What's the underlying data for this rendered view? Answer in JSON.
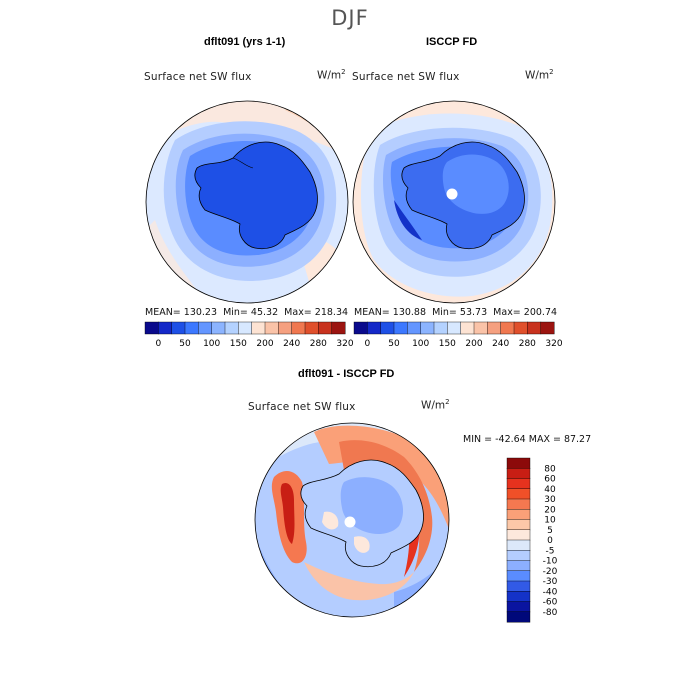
{
  "season": "DJF",
  "panels": [
    {
      "title": "dflt091 (yrs 1-1)",
      "variable": "Surface net SW flux",
      "units": "W/m",
      "units_exp": "2",
      "stats": {
        "mean": "MEAN=  130.23",
        "min": "Min=   45.32",
        "max": "Max=  218.34"
      }
    },
    {
      "title": "ISCCP FD",
      "variable": "Surface net SW flux",
      "units": "W/m",
      "units_exp": "2",
      "stats": {
        "mean": "MEAN=  130.88",
        "min": "Min=   53.73",
        "max": "Max=  200.74"
      }
    }
  ],
  "abs_colorbar": {
    "labels": [
      "0",
      "50",
      "100",
      "150",
      "200",
      "240",
      "280",
      "320"
    ],
    "colors": [
      "#0a0a8c",
      "#1428c8",
      "#1e50e6",
      "#3c78ff",
      "#6496ff",
      "#8cb4ff",
      "#b4d2ff",
      "#d7e8ff",
      "#fde3d3",
      "#fac3a8",
      "#f5a080",
      "#f07850",
      "#e0502c",
      "#c8321e",
      "#9b1410"
    ]
  },
  "diff": {
    "title": "dflt091 - ISCCP FD",
    "variable": "Surface net SW flux",
    "units": "W/m",
    "units_exp": "2",
    "minmax": "MIN = -42.64  MAX =   87.27",
    "levels": [
      "80",
      "60",
      "40",
      "30",
      "20",
      "10",
      "5",
      "0",
      "-5",
      "-10",
      "-20",
      "-30",
      "-40",
      "-60",
      "-80"
    ],
    "colors": [
      "#8c0a0a",
      "#c81e14",
      "#e6321e",
      "#f05028",
      "#f57850",
      "#faa078",
      "#fcc8a8",
      "#fde8dc",
      "#dce8fa",
      "#b4cdff",
      "#8cafff",
      "#5a8cff",
      "#325ae6",
      "#1432c8",
      "#0a14a0",
      "#00087a"
    ]
  },
  "colors": {
    "deep_blue": "#1e50e6",
    "light_blue": "#cde0ff",
    "pale": "#fde8dc",
    "red": "#e6321e"
  }
}
